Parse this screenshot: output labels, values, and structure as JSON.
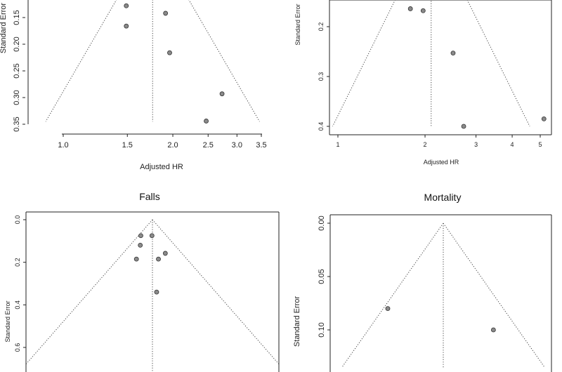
{
  "chart_data": [
    {
      "type": "scatter",
      "title": "",
      "xlabel": "Adjusted HR",
      "ylabel": "Standard Error",
      "x_scale": "log",
      "y_reversed": true,
      "xticks": [
        1.0,
        1.5,
        2.0,
        2.5,
        3.0,
        3.5
      ],
      "xtick_labels": [
        "1.0",
        "1.5",
        "2.0",
        "2.5",
        "3.0",
        "3.5"
      ],
      "yticks": [
        0.15,
        0.2,
        0.25,
        0.3,
        0.35
      ],
      "ytick_labels": [
        "0.15",
        "0.20",
        "0.25",
        "0.30",
        "0.35"
      ],
      "center": 1.76,
      "funnel_base_se": 0.345,
      "points": [
        {
          "x": 1.49,
          "y": 0.128
        },
        {
          "x": 1.49,
          "y": 0.166
        },
        {
          "x": 1.91,
          "y": 0.142
        },
        {
          "x": 1.96,
          "y": 0.216
        },
        {
          "x": 2.73,
          "y": 0.293
        },
        {
          "x": 2.47,
          "y": 0.344
        }
      ]
    },
    {
      "type": "scatter",
      "title": "",
      "xlabel": "Adjusted HR",
      "ylabel": "Standard Error",
      "x_scale": "log",
      "y_reversed": true,
      "xticks": [
        1,
        2,
        3,
        4,
        5
      ],
      "xtick_labels": [
        "1",
        "2",
        "3",
        "4",
        "5"
      ],
      "yticks": [
        0.2,
        0.3,
        0.4
      ],
      "ytick_labels": [
        "0.2",
        "0.3",
        "0.4"
      ],
      "center": 2.1,
      "funnel_base_se": 0.4,
      "points": [
        {
          "x": 1.78,
          "y": 0.164
        },
        {
          "x": 1.97,
          "y": 0.168
        },
        {
          "x": 2.5,
          "y": 0.253
        },
        {
          "x": 2.72,
          "y": 0.4
        },
        {
          "x": 5.15,
          "y": 0.385
        }
      ]
    },
    {
      "type": "scatter",
      "title": "Falls",
      "xlabel": "",
      "ylabel": "Standard Error",
      "x_scale": "log",
      "y_reversed": true,
      "yticks": [
        0.0,
        0.2,
        0.4,
        0.6
      ],
      "ytick_labels": [
        "0.0",
        "0.2",
        "0.4",
        "0.6"
      ],
      "center": 1.0,
      "funnel_base_se": 0.75,
      "points": [
        {
          "x": 0.885,
          "y": 0.075
        },
        {
          "x": 0.995,
          "y": 0.075
        },
        {
          "x": 0.88,
          "y": 0.12
        },
        {
          "x": 0.845,
          "y": 0.185
        },
        {
          "x": 1.145,
          "y": 0.158
        },
        {
          "x": 1.065,
          "y": 0.185
        },
        {
          "x": 1.045,
          "y": 0.34
        }
      ]
    },
    {
      "type": "scatter",
      "title": "Mortality",
      "xlabel": "",
      "ylabel": "Standard Error",
      "x_scale": "log",
      "y_reversed": true,
      "yticks": [
        0.0,
        0.05,
        0.1
      ],
      "ytick_labels": [
        "0.00",
        "0.05",
        "0.10"
      ],
      "center": 1.0,
      "funnel_base_se": 0.135,
      "points": [
        {
          "x": 0.865,
          "y": 0.08
        },
        {
          "x": 1.14,
          "y": 0.1
        }
      ]
    }
  ]
}
